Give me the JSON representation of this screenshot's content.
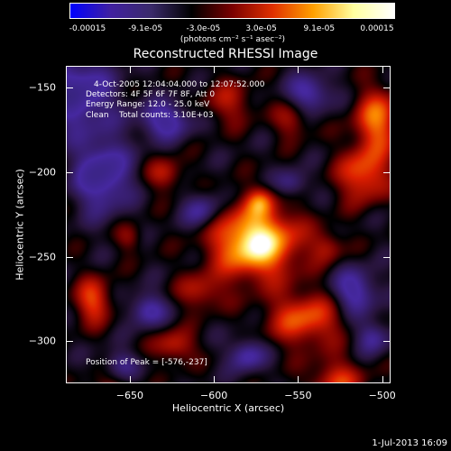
{
  "colorbar": {
    "labels": [
      "-0.00015",
      "-9.1e-05",
      "-3.0e-05",
      "3.0e-05",
      "9.1e-05",
      "0.00015"
    ],
    "units": "(photons cm⁻² s⁻¹ asec⁻²)",
    "colors": [
      "#0000ff",
      "#4020a0",
      "#3a2a6a",
      "#000000",
      "#7a0000",
      "#e03000",
      "#ffa000",
      "#ffffa0",
      "#ffffff"
    ]
  },
  "title": "Reconstructed RHESSI Image",
  "info": {
    "time": "4-Oct-2005 12:04:04.000 to 12:07:52.000",
    "detectors": "Detectors: 4F 5F 6F 7F 8F, Att 0",
    "energy": "Energy Range: 12.0 - 25.0 keV",
    "clean": "Clean    Total counts: 3.10E+03",
    "peak": "Position of Peak = [-576,-237]"
  },
  "chart_data": {
    "type": "heatmap",
    "title": "Reconstructed RHESSI Image",
    "xlabel": "Heliocentric X (arcsec)",
    "ylabel": "Heliocentric Y (arcsec)",
    "xlim": [
      -688,
      -495
    ],
    "ylim": [
      -325,
      -137
    ],
    "xticks": [
      -650,
      -600,
      -550,
      -500
    ],
    "yticks": [
      -150,
      -200,
      -250,
      -300
    ],
    "color_range": [
      -0.00015,
      0.00015
    ],
    "peak": [
      -576,
      -237
    ]
  },
  "footer": {
    "date": "1-Jul-2013 16:09"
  }
}
